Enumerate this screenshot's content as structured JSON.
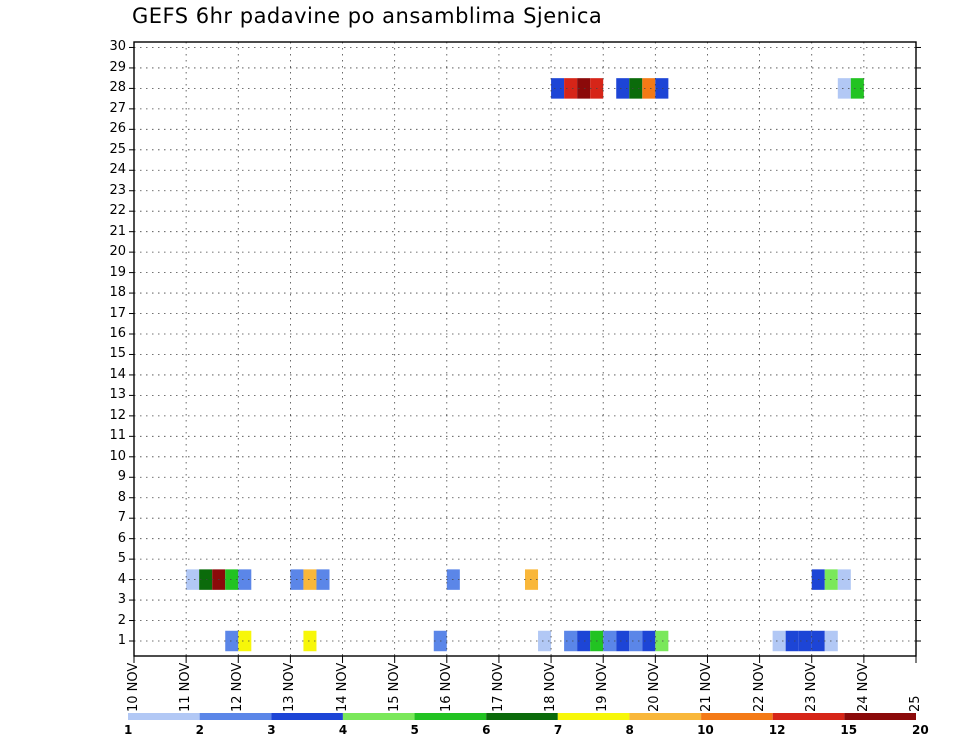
{
  "title": "GEFS 6hr padavine po ansamblima Sjenica",
  "chart_data": {
    "type": "heatmap",
    "title": "GEFS 6hr padavine po ansamblima Sjenica",
    "xlabel": "",
    "ylabel": "",
    "x_ticks": [
      "10 NOV",
      "11 NOV",
      "12 NOV",
      "13 NOV",
      "14 NOV",
      "15 NOV",
      "16 NOV",
      "17 NOV",
      "18 NOV",
      "19 NOV",
      "20 NOV",
      "21 NOV",
      "22 NOV",
      "23 NOV",
      "24 NOV",
      "25"
    ],
    "y_range": [
      0,
      30
    ],
    "y_ticks": [
      1,
      2,
      3,
      4,
      5,
      6,
      7,
      8,
      9,
      10,
      11,
      12,
      13,
      14,
      15,
      16,
      17,
      18,
      19,
      20,
      21,
      22,
      23,
      24,
      25,
      26,
      27,
      28,
      29,
      30
    ],
    "time_step_hours": 6,
    "grid": "dotted",
    "colorbar": {
      "position": "bottom",
      "labels": [
        "1",
        "2",
        "3",
        "4",
        "5",
        "6",
        "7",
        "8",
        "10",
        "12",
        "15",
        "20"
      ],
      "colors": [
        "#b2c8f5",
        "#5b86e8",
        "#1d45d6",
        "#7ae85a",
        "#22c322",
        "#0b6b0b",
        "#f7f709",
        "#f9b73a",
        "#f47a16",
        "#d62518",
        "#8b0a0a"
      ]
    },
    "cells": [
      {
        "member": 1,
        "start": "11 NOV 18h",
        "level": 2
      },
      {
        "member": 1,
        "start": "12 NOV 00h",
        "level": 7
      },
      {
        "member": 1,
        "start": "13 NOV 06h",
        "level": 7
      },
      {
        "member": 1,
        "start": "15 NOV 18h",
        "level": 2
      },
      {
        "member": 1,
        "start": "17 NOV 18h",
        "level": 1
      },
      {
        "member": 1,
        "start": "18 NOV 06h",
        "level": 2
      },
      {
        "member": 1,
        "start": "18 NOV 12h",
        "level": 3
      },
      {
        "member": 1,
        "start": "18 NOV 18h",
        "level": 5
      },
      {
        "member": 1,
        "start": "19 NOV 00h",
        "level": 2
      },
      {
        "member": 1,
        "start": "19 NOV 06h",
        "level": 3
      },
      {
        "member": 1,
        "start": "19 NOV 12h",
        "level": 2
      },
      {
        "member": 1,
        "start": "19 NOV 18h",
        "level": 3
      },
      {
        "member": 1,
        "start": "20 NOV 00h",
        "level": 4
      },
      {
        "member": 1,
        "start": "22 NOV 06h",
        "level": 1
      },
      {
        "member": 1,
        "start": "22 NOV 12h",
        "level": 3
      },
      {
        "member": 1,
        "start": "22 NOV 18h",
        "level": 3
      },
      {
        "member": 1,
        "start": "23 NOV 00h",
        "level": 3
      },
      {
        "member": 1,
        "start": "23 NOV 06h",
        "level": 1
      },
      {
        "member": 4,
        "start": "11 NOV 00h",
        "level": 1
      },
      {
        "member": 4,
        "start": "11 NOV 06h",
        "level": 6
      },
      {
        "member": 4,
        "start": "11 NOV 12h",
        "level": 11
      },
      {
        "member": 4,
        "start": "11 NOV 18h",
        "level": 5
      },
      {
        "member": 4,
        "start": "12 NOV 00h",
        "level": 2
      },
      {
        "member": 4,
        "start": "13 NOV 00h",
        "level": 2
      },
      {
        "member": 4,
        "start": "13 NOV 06h",
        "level": 8
      },
      {
        "member": 4,
        "start": "13 NOV 12h",
        "level": 2
      },
      {
        "member": 4,
        "start": "16 NOV 00h",
        "level": 2
      },
      {
        "member": 4,
        "start": "17 NOV 12h",
        "level": 8
      },
      {
        "member": 4,
        "start": "23 NOV 00h",
        "level": 3
      },
      {
        "member": 4,
        "start": "23 NOV 06h",
        "level": 4
      },
      {
        "member": 4,
        "start": "23 NOV 12h",
        "level": 1
      },
      {
        "member": 28,
        "start": "18 NOV 00h",
        "level": 3
      },
      {
        "member": 28,
        "start": "18 NOV 06h",
        "level": 10
      },
      {
        "member": 28,
        "start": "18 NOV 12h",
        "level": 11
      },
      {
        "member": 28,
        "start": "18 NOV 18h",
        "level": 10
      },
      {
        "member": 28,
        "start": "19 NOV 06h",
        "level": 3
      },
      {
        "member": 28,
        "start": "19 NOV 12h",
        "level": 6
      },
      {
        "member": 28,
        "start": "19 NOV 18h",
        "level": 9
      },
      {
        "member": 28,
        "start": "20 NOV 00h",
        "level": 3
      },
      {
        "member": 28,
        "start": "23 NOV 12h",
        "level": 1
      },
      {
        "member": 28,
        "start": "23 NOV 18h",
        "level": 5
      }
    ]
  }
}
